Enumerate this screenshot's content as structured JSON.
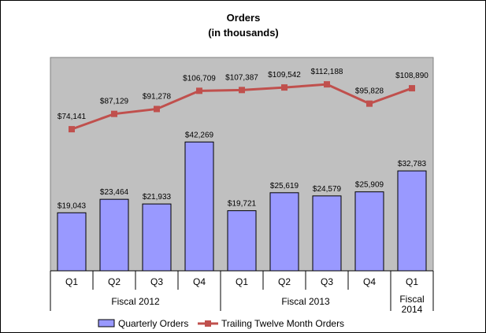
{
  "chart_data": {
    "type": "bar",
    "title": "Orders",
    "subtitle": "(in thousands)",
    "categories": [
      "Q1",
      "Q2",
      "Q3",
      "Q4",
      "Q1",
      "Q2",
      "Q3",
      "Q4",
      "Q1"
    ],
    "groups": [
      {
        "label": "Fiscal 2012",
        "count": 4
      },
      {
        "label": "Fiscal 2013",
        "count": 4
      },
      {
        "label": "Fiscal\n2014",
        "count": 1
      }
    ],
    "series": [
      {
        "name": "Quarterly Orders",
        "type": "bar",
        "color": "#9999ff",
        "values": [
          19043,
          23464,
          21933,
          42269,
          19721,
          25619,
          24579,
          25909,
          32783
        ],
        "labels": [
          "$19,043",
          "$23,464",
          "$21,933",
          "$42,269",
          "$19,721",
          "$25,619",
          "$24,579",
          "$25,909",
          "$32,783"
        ]
      },
      {
        "name": "Trailing Twelve Month Orders",
        "type": "line",
        "color": "#c0504d",
        "values": [
          74141,
          87129,
          91278,
          106709,
          107387,
          109542,
          112188,
          95828,
          108890
        ],
        "labels": [
          "$74,141",
          "$87,129",
          "$91,278",
          "$106,709",
          "$107,387",
          "$109,542",
          "$112,188",
          "$95,828",
          "$108,890"
        ]
      }
    ],
    "bar_ylim": [
      0,
      70000
    ],
    "line_ylim": [
      -46000,
      135000
    ],
    "plot_background": "#c0c0c0",
    "grid": false,
    "legend_position": "bottom"
  }
}
